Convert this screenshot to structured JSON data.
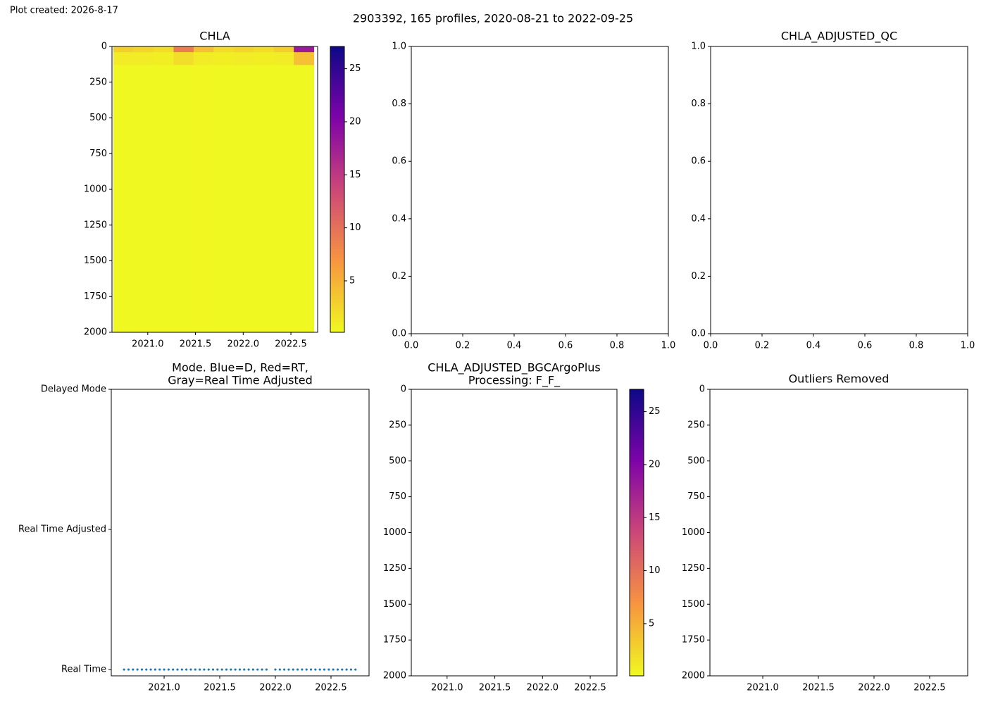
{
  "caption": "Plot created: 2026-8-17",
  "title": "2903392, 165 profiles, 2020-08-21 to 2022-09-25",
  "chart_data": [
    {
      "type": "heatmap",
      "title": "CHLA",
      "colormap": "plasma_r",
      "x_edges": [
        2020.64,
        2020.85,
        2021.06,
        2021.27,
        2021.48,
        2021.69,
        2021.9,
        2022.11,
        2022.32,
        2022.53,
        2022.74
      ],
      "y_edges": [
        0,
        40,
        130,
        2000
      ],
      "z": [
        [
          3,
          2.5,
          2,
          9,
          4,
          2,
          2.5,
          2,
          3,
          18
        ],
        [
          1,
          1,
          0.8,
          2,
          1,
          0.8,
          1,
          0.8,
          1,
          4
        ],
        [
          0.2,
          0.2,
          0.2,
          0.2,
          0.2,
          0.2,
          0.2,
          0.2,
          0.2,
          0.2
        ]
      ],
      "xlim": [
        2020.625,
        2022.78
      ],
      "ylim": [
        2000,
        0
      ],
      "xticks": [
        {
          "value": 2021,
          "label": "2021.0"
        },
        {
          "value": 2021.5,
          "label": "2021.5"
        },
        {
          "value": 2022,
          "label": "2022.0"
        },
        {
          "value": 2022.5,
          "label": "2022.5"
        }
      ],
      "yticks": [
        0,
        250,
        500,
        750,
        1000,
        1250,
        1500,
        1750,
        2000
      ],
      "clim": [
        0.15,
        27.1
      ],
      "cticks": [
        5,
        10,
        15,
        20,
        25
      ]
    },
    {
      "type": "axes",
      "xlim": [
        0,
        1
      ],
      "ylim": [
        0,
        1
      ],
      "xticks": [
        {
          "value": 0,
          "label": "0.0"
        },
        {
          "value": 0.2,
          "label": "0.2"
        },
        {
          "value": 0.4,
          "label": "0.4"
        },
        {
          "value": 0.6,
          "label": "0.6"
        },
        {
          "value": 0.8,
          "label": "0.8"
        },
        {
          "value": 1,
          "label": "1.0"
        }
      ],
      "yticks": [
        {
          "value": 0,
          "label": "0.0"
        },
        {
          "value": 0.2,
          "label": "0.2"
        },
        {
          "value": 0.4,
          "label": "0.4"
        },
        {
          "value": 0.6,
          "label": "0.6"
        },
        {
          "value": 0.8,
          "label": "0.8"
        },
        {
          "value": 1,
          "label": "1.0"
        }
      ]
    },
    {
      "type": "axes",
      "title": "CHLA_ADJUSTED_QC",
      "xlim": [
        0,
        1
      ],
      "ylim": [
        0,
        1
      ],
      "xticks": [
        {
          "value": 0,
          "label": "0.0"
        },
        {
          "value": 0.2,
          "label": "0.2"
        },
        {
          "value": 0.4,
          "label": "0.4"
        },
        {
          "value": 0.6,
          "label": "0.6"
        },
        {
          "value": 0.8,
          "label": "0.8"
        },
        {
          "value": 1,
          "label": "1.0"
        }
      ],
      "yticks": [
        {
          "value": 0,
          "label": "0.0"
        },
        {
          "value": 0.2,
          "label": "0.2"
        },
        {
          "value": 0.4,
          "label": "0.4"
        },
        {
          "value": 0.6,
          "label": "0.6"
        },
        {
          "value": 0.8,
          "label": "0.8"
        },
        {
          "value": 1,
          "label": "1.0"
        }
      ]
    },
    {
      "type": "scatter",
      "title": [
        "Mode. Blue=D, Red=RT,",
        "Gray=Real Time Adjusted"
      ],
      "xlim": [
        2020.525,
        2022.842
      ],
      "ylim": [
        -0.045,
        2
      ],
      "xticks": [
        {
          "value": 2021,
          "label": "2021.0"
        },
        {
          "value": 2021.5,
          "label": "2021.5"
        },
        {
          "value": 2022,
          "label": "2022.0"
        },
        {
          "value": 2022.5,
          "label": "2022.5"
        }
      ],
      "yticks": [
        {
          "value": 0,
          "label": "Real Time"
        },
        {
          "value": 1,
          "label": "Real Time Adjusted"
        },
        {
          "value": 2,
          "label": "Delayed Mode"
        }
      ],
      "series": [
        {
          "color": "#1f77b4",
          "x": [
            2020.64,
            2020.68,
            2020.72,
            2020.76,
            2020.8,
            2020.84,
            2020.88,
            2020.92,
            2020.96,
            2021.0,
            2021.04,
            2021.08,
            2021.12,
            2021.16,
            2021.2,
            2021.24,
            2021.28,
            2021.32,
            2021.36,
            2021.4,
            2021.44,
            2021.48,
            2021.52,
            2021.56,
            2021.6,
            2021.64,
            2021.68,
            2021.72,
            2021.76,
            2021.8,
            2021.84,
            2021.88,
            2021.92,
            2022.0,
            2022.04,
            2022.08,
            2022.12,
            2022.16,
            2022.2,
            2022.24,
            2022.28,
            2022.32,
            2022.36,
            2022.4,
            2022.44,
            2022.48,
            2022.52,
            2022.56,
            2022.6,
            2022.64,
            2022.68,
            2022.72
          ],
          "values": [
            0,
            0,
            0,
            0,
            0,
            0,
            0,
            0,
            0,
            0,
            0,
            0,
            0,
            0,
            0,
            0,
            0,
            0,
            0,
            0,
            0,
            0,
            0,
            0,
            0,
            0,
            0,
            0,
            0,
            0,
            0,
            0,
            0,
            0,
            0,
            0,
            0,
            0,
            0,
            0,
            0,
            0,
            0,
            0,
            0,
            0,
            0,
            0,
            0,
            0,
            0,
            0
          ]
        }
      ]
    },
    {
      "type": "heatmap",
      "title": [
        "CHLA_ADJUSTED_BGCArgoPlus",
        "Processing: F_F_"
      ],
      "colormap": "plasma_r",
      "xlim": [
        2020.625,
        2022.78
      ],
      "ylim": [
        2000,
        0
      ],
      "xticks": [
        {
          "value": 2021,
          "label": "2021.0"
        },
        {
          "value": 2021.5,
          "label": "2021.5"
        },
        {
          "value": 2022,
          "label": "2022.0"
        },
        {
          "value": 2022.5,
          "label": "2022.5"
        }
      ],
      "yticks": [
        0,
        250,
        500,
        750,
        1000,
        1250,
        1500,
        1750,
        2000
      ],
      "clim": [
        0.08,
        27.1
      ],
      "cticks": [
        5,
        10,
        15,
        20,
        25
      ]
    },
    {
      "type": "scatter",
      "title": "Outliers Removed",
      "xlim": [
        2020.525,
        2022.842
      ],
      "ylim": [
        2000,
        0
      ],
      "xticks": [
        {
          "value": 2021,
          "label": "2021.0"
        },
        {
          "value": 2021.5,
          "label": "2021.5"
        },
        {
          "value": 2022,
          "label": "2022.0"
        },
        {
          "value": 2022.5,
          "label": "2022.5"
        }
      ],
      "yticks": [
        0,
        250,
        500,
        750,
        1000,
        1250,
        1500,
        1750,
        2000
      ]
    }
  ]
}
